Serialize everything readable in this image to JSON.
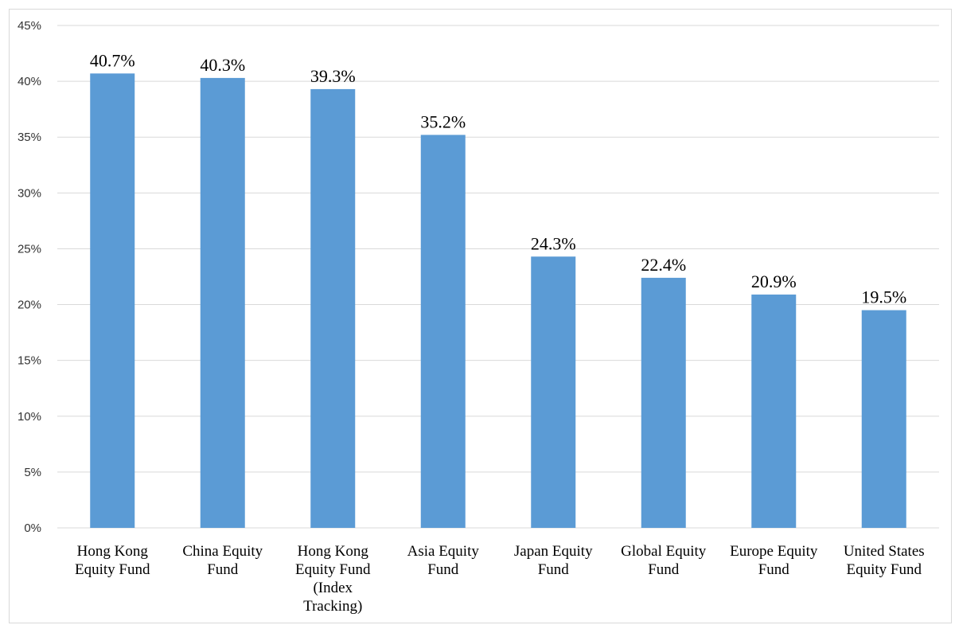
{
  "chart_data": {
    "type": "bar",
    "title": "",
    "xlabel": "",
    "ylabel": "",
    "ylim": [
      0,
      45
    ],
    "y_ticks": [
      "0%",
      "5%",
      "10%",
      "15%",
      "20%",
      "25%",
      "30%",
      "35%",
      "40%",
      "45%"
    ],
    "y_tick_values": [
      0,
      5,
      10,
      15,
      20,
      25,
      30,
      35,
      40,
      45
    ],
    "grid": true,
    "bar_color": "#5b9bd5",
    "grid_color": "#d9d9d9",
    "categories": [
      [
        "Hong Kong",
        "Equity Fund"
      ],
      [
        "China Equity",
        "Fund"
      ],
      [
        "Hong Kong",
        "Equity Fund",
        "(Index",
        "Tracking)"
      ],
      [
        "Asia Equity",
        "Fund"
      ],
      [
        "Japan Equity",
        "Fund"
      ],
      [
        "Global Equity",
        "Fund"
      ],
      [
        "Europe Equity",
        "Fund"
      ],
      [
        "United States",
        "Equity Fund"
      ]
    ],
    "values": [
      40.7,
      40.3,
      39.3,
      35.2,
      24.3,
      22.4,
      20.9,
      19.5
    ],
    "data_labels": [
      "40.7%",
      "40.3%",
      "39.3%",
      "35.2%",
      "24.3%",
      "22.4%",
      "20.9%",
      "19.5%"
    ]
  }
}
